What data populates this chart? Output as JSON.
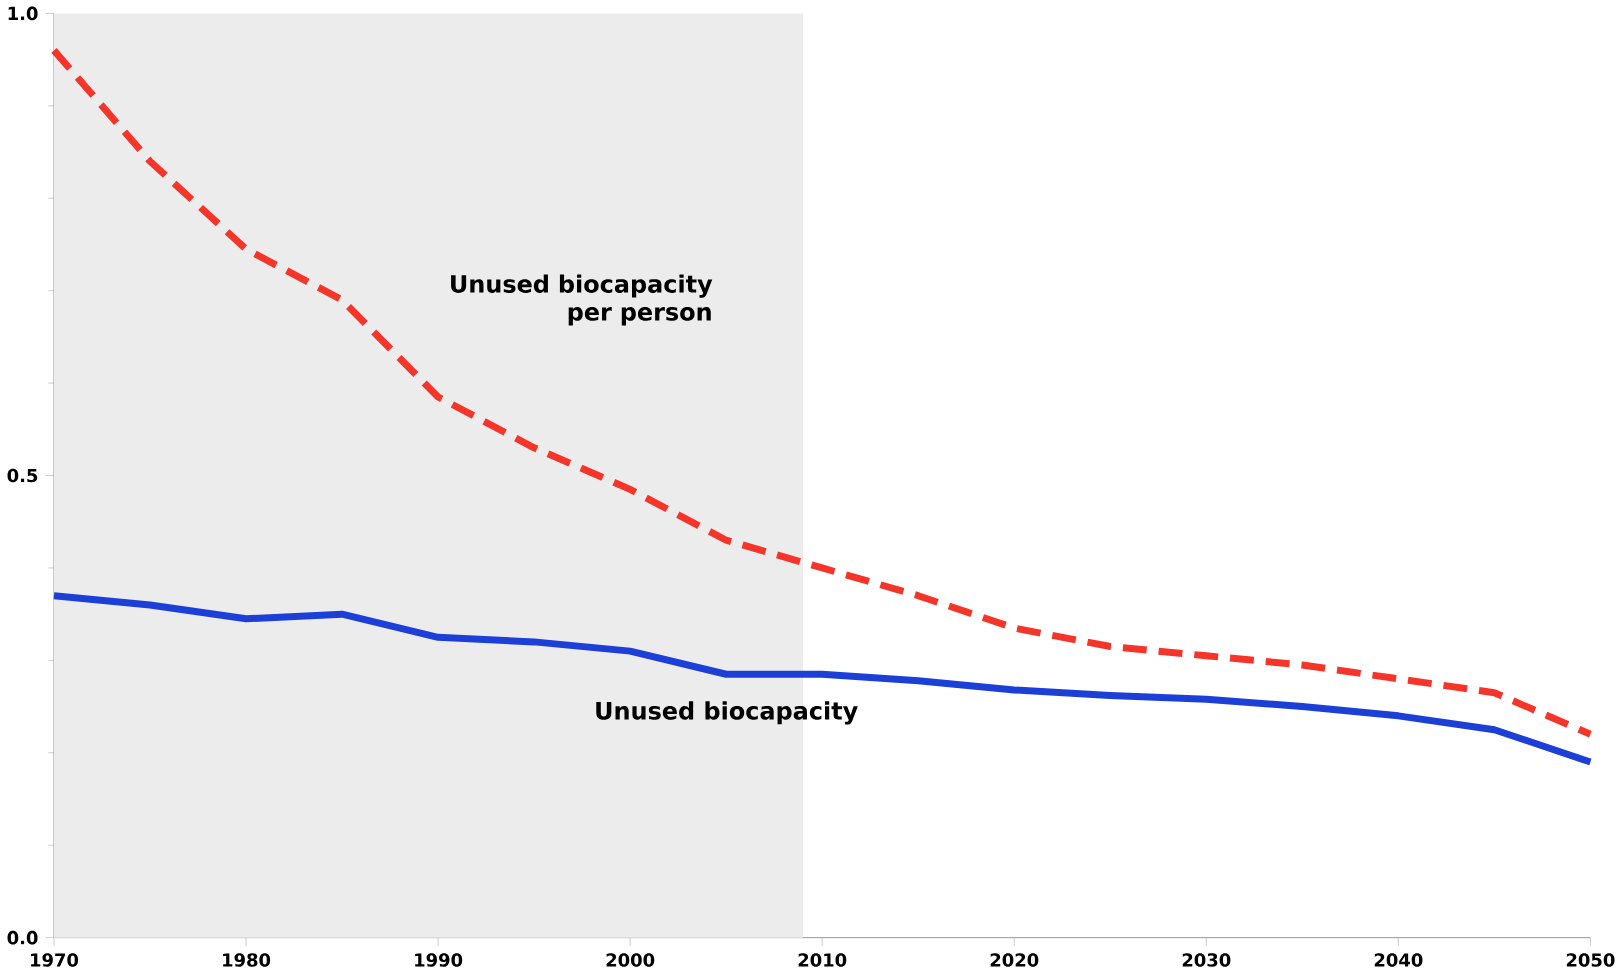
{
  "chart_data": {
    "type": "line",
    "x": [
      1970,
      1975,
      1980,
      1985,
      1990,
      1995,
      2000,
      2005,
      2010,
      2015,
      2020,
      2025,
      2030,
      2035,
      2040,
      2045,
      2050
    ],
    "series": [
      {
        "name": "Unused biocapacity per person",
        "color": "#f5352a",
        "line_style": "dashed",
        "values": [
          0.96,
          0.84,
          0.745,
          0.69,
          0.585,
          0.53,
          0.485,
          0.43,
          0.4,
          0.37,
          0.335,
          0.315,
          0.305,
          0.295,
          0.28,
          0.265,
          0.22
        ]
      },
      {
        "name": "Unused biocapacity",
        "color": "#1c3fd8",
        "line_style": "solid",
        "values": [
          0.37,
          0.36,
          0.345,
          0.35,
          0.325,
          0.32,
          0.31,
          0.285,
          0.285,
          0.278,
          0.268,
          0.262,
          0.258,
          0.25,
          0.24,
          0.225,
          0.19
        ]
      }
    ],
    "xlim": [
      1970,
      2050
    ],
    "ylim": [
      0,
      1.0
    ],
    "xticks": [
      1970,
      1980,
      1990,
      2000,
      2010,
      2020,
      2030,
      2040,
      2050
    ],
    "yticks": [
      {
        "value": 0,
        "label": "0.0"
      },
      {
        "value": 0.5,
        "label": "0.5"
      },
      {
        "value": 1.0,
        "label": "1.0"
      }
    ],
    "bands": [
      {
        "axis": "x",
        "from": 1970,
        "to": 2009,
        "color": "#ececec"
      }
    ],
    "grid": false,
    "marker": "none"
  }
}
